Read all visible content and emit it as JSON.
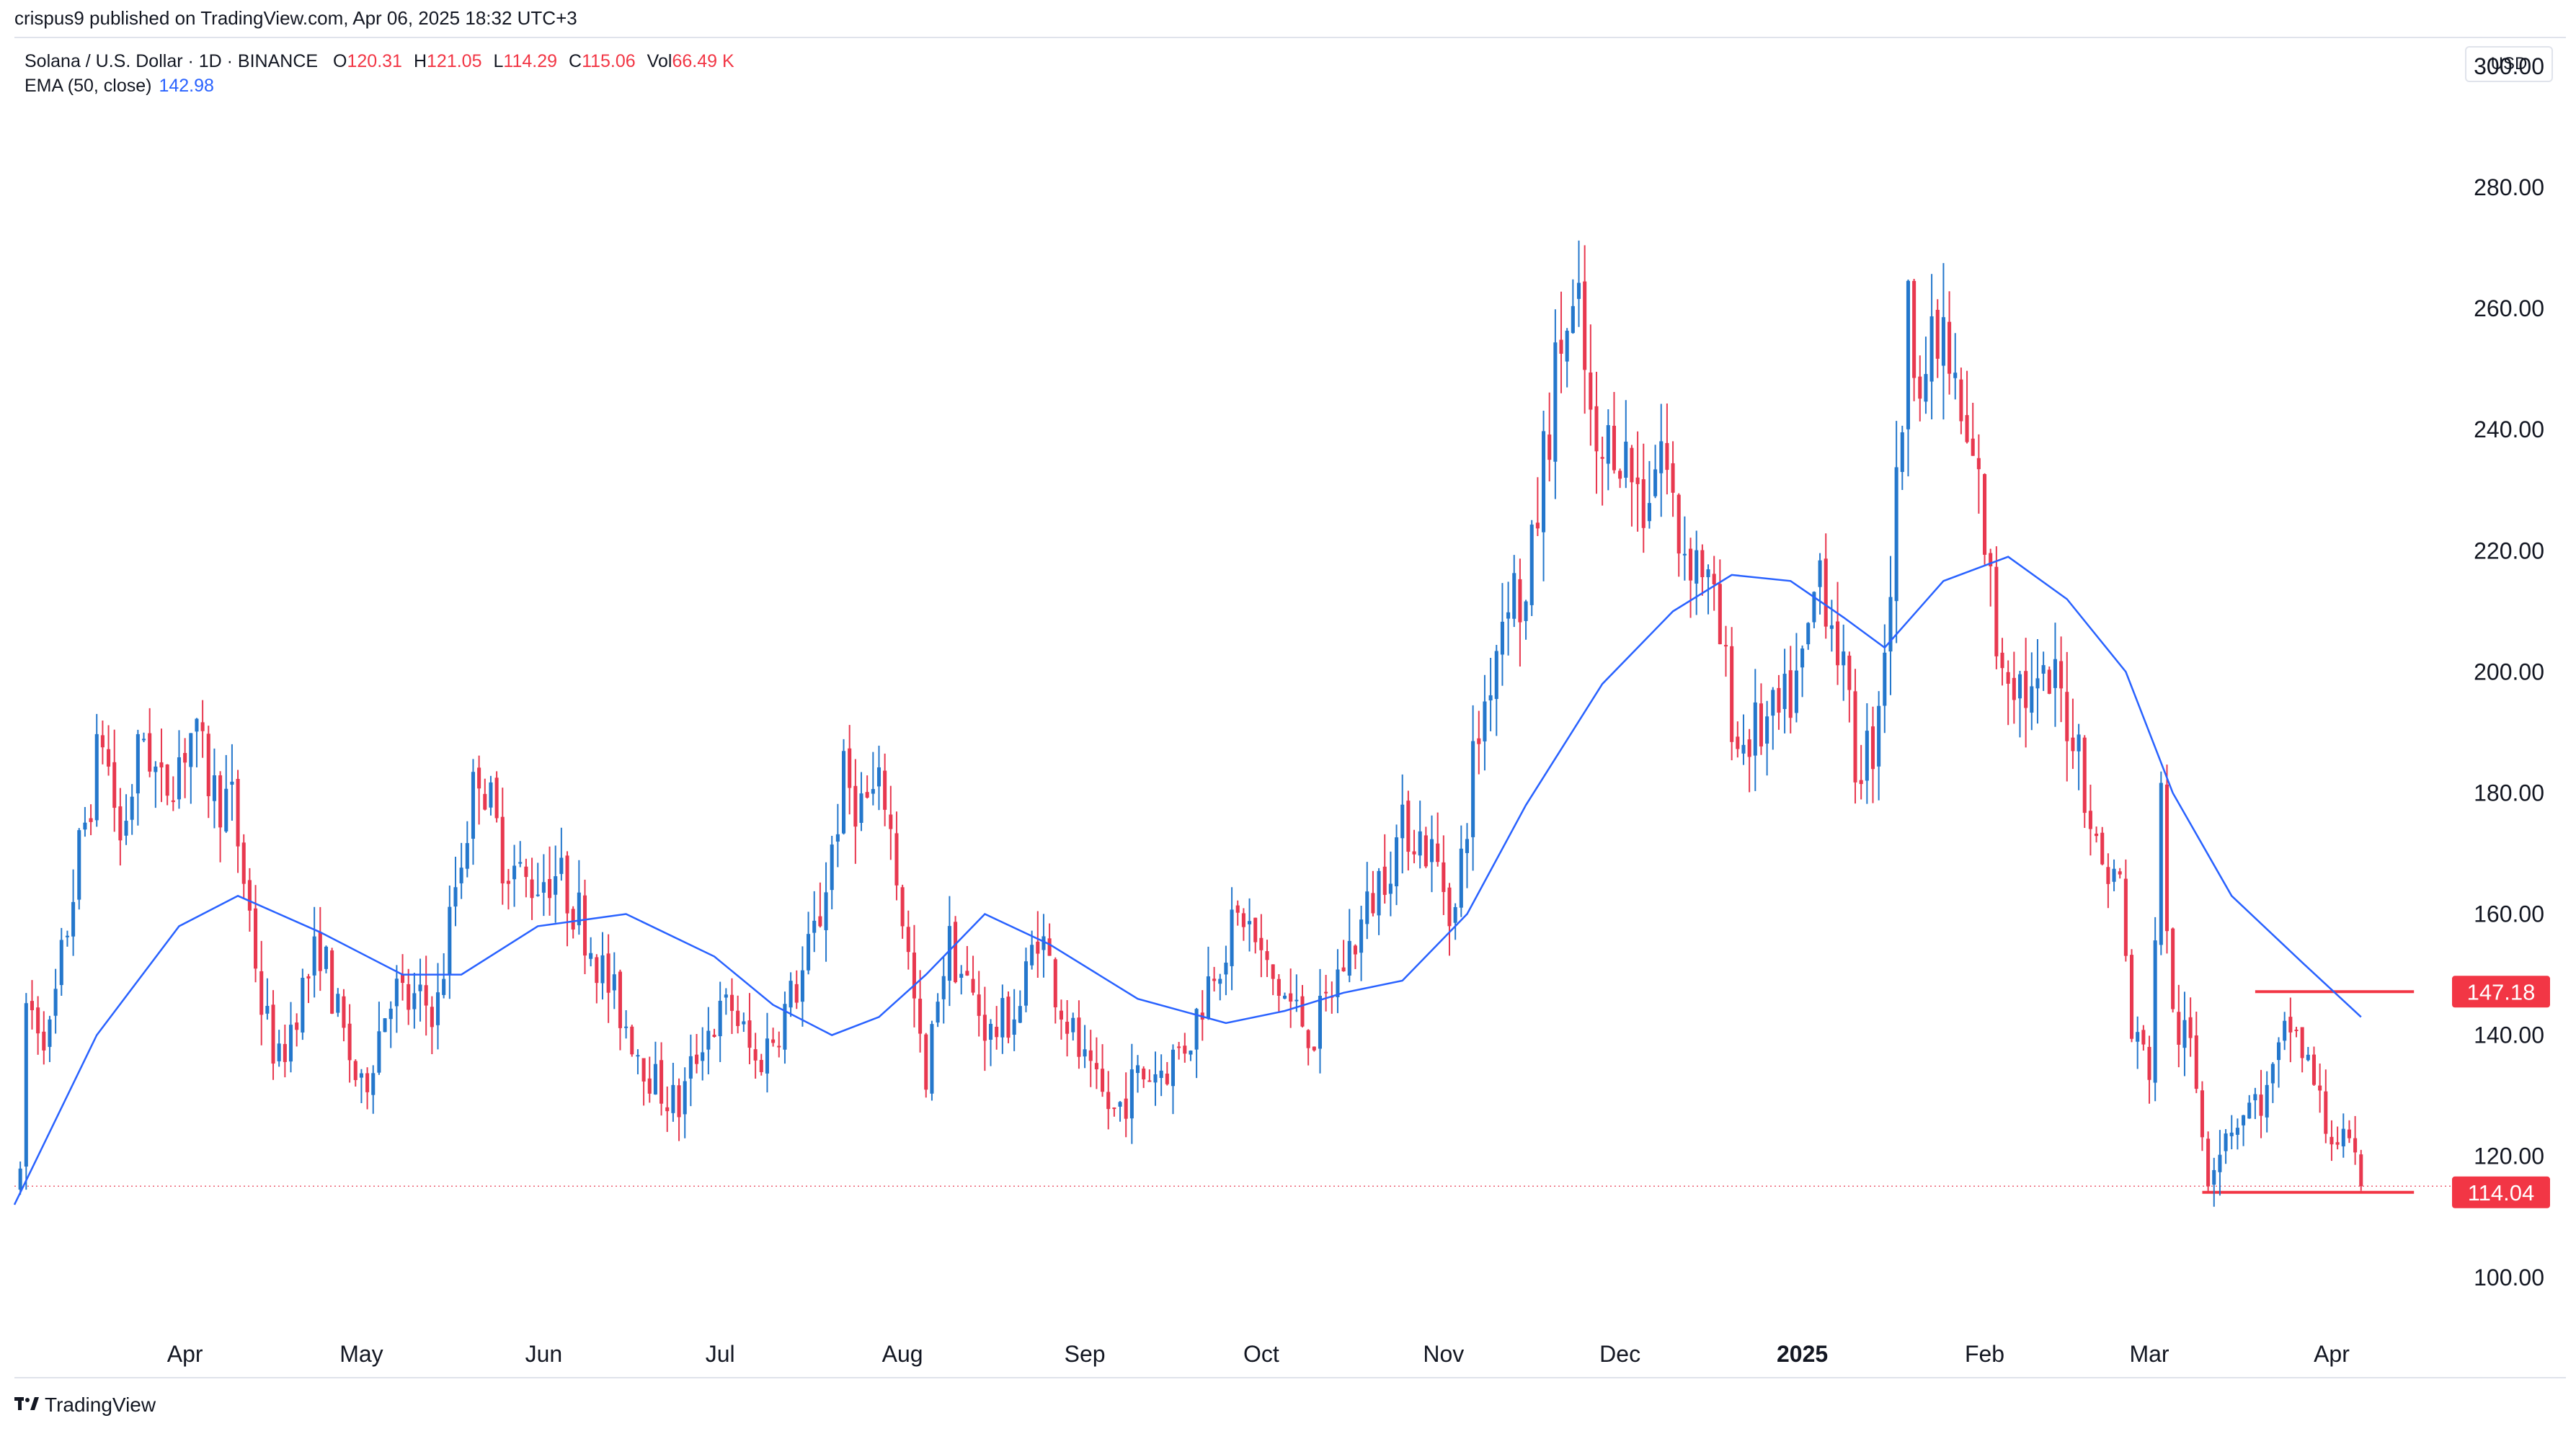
{
  "header": {
    "published": "crispus9 published on TradingView.com, Apr 06, 2025 18:32 UTC+3"
  },
  "legend": {
    "symbol": "Solana / U.S. Dollar · 1D · BINANCE",
    "open_label": "O",
    "open": "120.31",
    "high_label": "H",
    "high": "121.05",
    "low_label": "L",
    "low": "114.29",
    "close_label": "C",
    "close": "115.06",
    "vol_label": "Vol",
    "vol": "66.49 K",
    "ema_label": "EMA (50, close)",
    "ema": "142.98"
  },
  "currency_button": "USD",
  "footer": {
    "logo_icon": "tradingview-logo-icon",
    "brand": "TradingView"
  },
  "colors": {
    "up": "#2477cc",
    "down": "#e8384f",
    "ema": "#2962ff",
    "badge": "#f23645"
  },
  "chart_data": {
    "type": "candlestick",
    "title": "",
    "xlabel": "",
    "ylabel": "",
    "ylim": [
      92,
      305
    ],
    "y_ticks": [
      "300.00",
      "280.00",
      "260.00",
      "240.00",
      "220.00",
      "200.00",
      "180.00",
      "160.00",
      "140.00",
      "120.00",
      "100.00"
    ],
    "x_ticks": [
      {
        "label": "Apr",
        "date": "2024-04-01",
        "bold": false
      },
      {
        "label": "May",
        "date": "2024-05-01",
        "bold": false
      },
      {
        "label": "Jun",
        "date": "2024-06-01",
        "bold": false
      },
      {
        "label": "Jul",
        "date": "2024-07-01",
        "bold": false
      },
      {
        "label": "Aug",
        "date": "2024-08-01",
        "bold": false
      },
      {
        "label": "Sep",
        "date": "2024-09-01",
        "bold": false
      },
      {
        "label": "Oct",
        "date": "2024-10-01",
        "bold": false
      },
      {
        "label": "Nov",
        "date": "2024-11-01",
        "bold": false
      },
      {
        "label": "Dec",
        "date": "2024-12-01",
        "bold": false
      },
      {
        "label": "2025",
        "date": "2025-01-01",
        "bold": true
      },
      {
        "label": "Feb",
        "date": "2025-02-01",
        "bold": false
      },
      {
        "label": "Mar",
        "date": "2025-03-01",
        "bold": false
      },
      {
        "label": "Apr",
        "date": "2025-04-01",
        "bold": false
      }
    ],
    "x_range": [
      "2024-03-03",
      "2025-04-20"
    ],
    "last_bar": {
      "date": "2025-04-06",
      "open": 120.31,
      "high": 121.05,
      "low": 114.29,
      "close": 115.06
    },
    "price_path": [
      [
        "2024-03-05",
        145
      ],
      [
        "2024-03-09",
        140
      ],
      [
        "2024-03-14",
        170
      ],
      [
        "2024-03-18",
        190
      ],
      [
        "2024-03-21",
        172
      ],
      [
        "2024-03-25",
        190
      ],
      [
        "2024-03-28",
        180
      ],
      [
        "2024-04-02",
        190
      ],
      [
        "2024-04-06",
        180
      ],
      [
        "2024-04-09",
        178
      ],
      [
        "2024-04-12",
        160
      ],
      [
        "2024-04-14",
        145
      ],
      [
        "2024-04-17",
        135
      ],
      [
        "2024-04-20",
        145
      ],
      [
        "2024-04-24",
        155
      ],
      [
        "2024-04-27",
        143
      ],
      [
        "2024-05-01",
        130
      ],
      [
        "2024-05-06",
        148
      ],
      [
        "2024-05-09",
        145
      ],
      [
        "2024-05-14",
        145
      ],
      [
        "2024-05-17",
        165
      ],
      [
        "2024-05-21",
        185
      ],
      [
        "2024-05-25",
        170
      ],
      [
        "2024-05-29",
        165
      ],
      [
        "2024-06-03",
        167
      ],
      [
        "2024-06-07",
        160
      ],
      [
        "2024-06-12",
        148
      ],
      [
        "2024-06-16",
        140
      ],
      [
        "2024-06-20",
        132
      ],
      [
        "2024-06-24",
        128
      ],
      [
        "2024-06-28",
        140
      ],
      [
        "2024-07-03",
        145
      ],
      [
        "2024-07-07",
        135
      ],
      [
        "2024-07-10",
        140
      ],
      [
        "2024-07-15",
        150
      ],
      [
        "2024-07-18",
        160
      ],
      [
        "2024-07-22",
        182
      ],
      [
        "2024-07-25",
        178
      ],
      [
        "2024-07-29",
        180
      ],
      [
        "2024-08-01",
        160
      ],
      [
        "2024-08-05",
        130
      ],
      [
        "2024-08-07",
        148
      ],
      [
        "2024-08-09",
        155
      ],
      [
        "2024-08-12",
        148
      ],
      [
        "2024-08-16",
        140
      ],
      [
        "2024-08-21",
        145
      ],
      [
        "2024-08-24",
        158
      ],
      [
        "2024-08-28",
        145
      ],
      [
        "2024-09-02",
        132
      ],
      [
        "2024-09-06",
        127
      ],
      [
        "2024-09-10",
        133
      ],
      [
        "2024-09-15",
        135
      ],
      [
        "2024-09-19",
        140
      ],
      [
        "2024-09-23",
        152
      ],
      [
        "2024-09-28",
        160
      ],
      [
        "2024-10-02",
        150
      ],
      [
        "2024-10-06",
        145
      ],
      [
        "2024-10-10",
        140
      ],
      [
        "2024-10-14",
        150
      ],
      [
        "2024-10-18",
        158
      ],
      [
        "2024-10-22",
        168
      ],
      [
        "2024-10-26",
        175
      ],
      [
        "2024-10-30",
        170
      ],
      [
        "2024-11-03",
        160
      ],
      [
        "2024-11-06",
        185
      ],
      [
        "2024-11-09",
        200
      ],
      [
        "2024-11-12",
        215
      ],
      [
        "2024-11-15",
        210
      ],
      [
        "2024-11-18",
        235
      ],
      [
        "2024-11-21",
        255
      ],
      [
        "2024-11-24",
        258
      ],
      [
        "2024-11-27",
        232
      ],
      [
        "2024-11-30",
        240
      ],
      [
        "2024-12-05",
        228
      ],
      [
        "2024-12-08",
        238
      ],
      [
        "2024-12-11",
        222
      ],
      [
        "2024-12-15",
        218
      ],
      [
        "2024-12-18",
        205
      ],
      [
        "2024-12-21",
        188
      ],
      [
        "2024-12-24",
        190
      ],
      [
        "2024-12-28",
        192
      ],
      [
        "2025-01-01",
        200
      ],
      [
        "2025-01-04",
        218
      ],
      [
        "2025-01-07",
        205
      ],
      [
        "2025-01-10",
        185
      ],
      [
        "2025-01-13",
        188
      ],
      [
        "2025-01-16",
        215
      ],
      [
        "2025-01-19",
        258
      ],
      [
        "2025-01-22",
        250
      ],
      [
        "2025-01-25",
        255
      ],
      [
        "2025-01-28",
        240
      ],
      [
        "2025-01-31",
        230
      ],
      [
        "2025-02-03",
        205
      ],
      [
        "2025-02-06",
        200
      ],
      [
        "2025-02-09",
        195
      ],
      [
        "2025-02-13",
        198
      ],
      [
        "2025-02-17",
        188
      ],
      [
        "2025-02-20",
        170
      ],
      [
        "2025-02-24",
        165
      ],
      [
        "2025-02-26",
        140
      ],
      [
        "2025-03-01",
        135
      ],
      [
        "2025-03-03",
        178
      ],
      [
        "2025-03-05",
        142
      ],
      [
        "2025-03-08",
        138
      ],
      [
        "2025-03-11",
        118
      ],
      [
        "2025-03-14",
        125
      ],
      [
        "2025-03-18",
        128
      ],
      [
        "2025-03-21",
        130
      ],
      [
        "2025-03-25",
        142
      ],
      [
        "2025-03-28",
        135
      ],
      [
        "2025-03-31",
        125
      ],
      [
        "2025-04-03",
        122
      ],
      [
        "2025-04-06",
        115.06
      ]
    ],
    "series": [
      {
        "name": "EMA (50, close)",
        "type": "line",
        "points": [
          [
            "2024-03-03",
            112
          ],
          [
            "2024-03-17",
            140
          ],
          [
            "2024-03-31",
            158
          ],
          [
            "2024-04-10",
            163
          ],
          [
            "2024-04-24",
            157
          ],
          [
            "2024-05-08",
            150
          ],
          [
            "2024-05-18",
            150
          ],
          [
            "2024-05-31",
            158
          ],
          [
            "2024-06-15",
            160
          ],
          [
            "2024-06-30",
            153
          ],
          [
            "2024-07-10",
            145
          ],
          [
            "2024-07-20",
            140
          ],
          [
            "2024-07-28",
            143
          ],
          [
            "2024-08-05",
            150
          ],
          [
            "2024-08-15",
            160
          ],
          [
            "2024-08-26",
            155
          ],
          [
            "2024-09-10",
            146
          ],
          [
            "2024-09-25",
            142
          ],
          [
            "2024-10-05",
            144
          ],
          [
            "2024-10-15",
            147
          ],
          [
            "2024-10-25",
            149
          ],
          [
            "2024-11-05",
            160
          ],
          [
            "2024-11-15",
            178
          ],
          [
            "2024-11-28",
            198
          ],
          [
            "2024-12-10",
            210
          ],
          [
            "2024-12-20",
            216
          ],
          [
            "2024-12-30",
            215
          ],
          [
            "2025-01-08",
            209
          ],
          [
            "2025-01-15",
            204
          ],
          [
            "2025-01-25",
            215
          ],
          [
            "2025-02-05",
            219
          ],
          [
            "2025-02-15",
            212
          ],
          [
            "2025-02-25",
            200
          ],
          [
            "2025-03-05",
            180
          ],
          [
            "2025-03-15",
            163
          ],
          [
            "2025-03-27",
            152
          ],
          [
            "2025-04-06",
            143
          ]
        ]
      }
    ],
    "horizontal_levels": [
      {
        "value": 147.18,
        "label": "147.18",
        "from": "2025-03-19",
        "to": "2025-04-15",
        "style": "solid"
      },
      {
        "value": 114.04,
        "label": "114.04",
        "from": "2025-03-10",
        "to": "2025-04-15",
        "style": "solid"
      },
      {
        "value": 115.06,
        "label": "",
        "from": "2024-03-03",
        "to": "2025-04-20",
        "style": "dotted"
      }
    ],
    "grid": false,
    "legend_position": "top-left"
  }
}
